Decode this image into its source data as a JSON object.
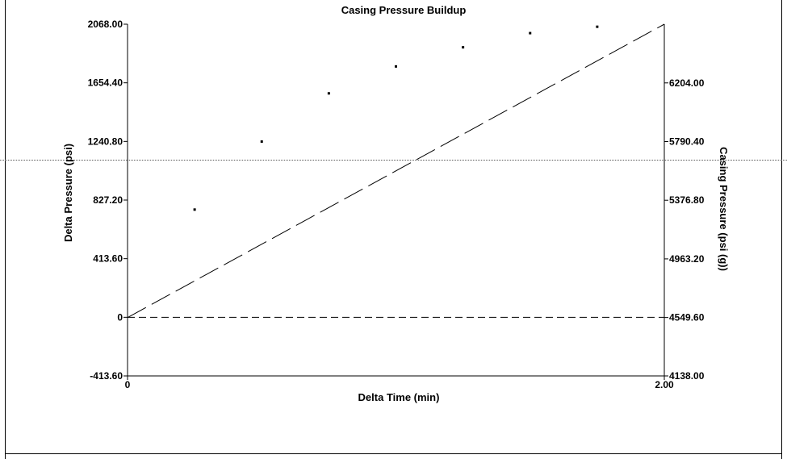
{
  "chart_data": {
    "type": "scatter",
    "title": "Casing Pressure Buildup",
    "xlabel": "Delta Time (min)",
    "ylabel": "Delta Pressure (psi)",
    "y2label": "Casing Pressure (psi (g))",
    "xlim": [
      0,
      2
    ],
    "ylim": [
      -413.6,
      2068.0
    ],
    "y2lim": [
      4138.0,
      6618.0
    ],
    "x_tick_labels": [
      "0",
      "2.00"
    ],
    "y_tick_labels": [
      "-413.60",
      "0",
      "413.60",
      "827.20",
      "1240.80",
      "1654.40",
      "2068.00"
    ],
    "y2_tick_labels": [
      "4138.00",
      "4549.60",
      "4963.20",
      "5376.80",
      "5790.40",
      "6204.00"
    ],
    "grid": false,
    "series": [
      {
        "axis": "left",
        "style": "points",
        "x": [
          0.25,
          0.5,
          0.75,
          1.0,
          1.25,
          1.5,
          1.75
        ],
        "y": [
          760,
          1240,
          1580,
          1770,
          1905,
          2005,
          2050
        ]
      },
      {
        "axis": "right",
        "style": "long-dash",
        "x": [
          0,
          2
        ],
        "y": [
          4549.6,
          6618.0
        ]
      },
      {
        "axis": "left",
        "style": "short-dash",
        "x": [
          0,
          2
        ],
        "y": [
          0,
          0
        ]
      }
    ]
  }
}
